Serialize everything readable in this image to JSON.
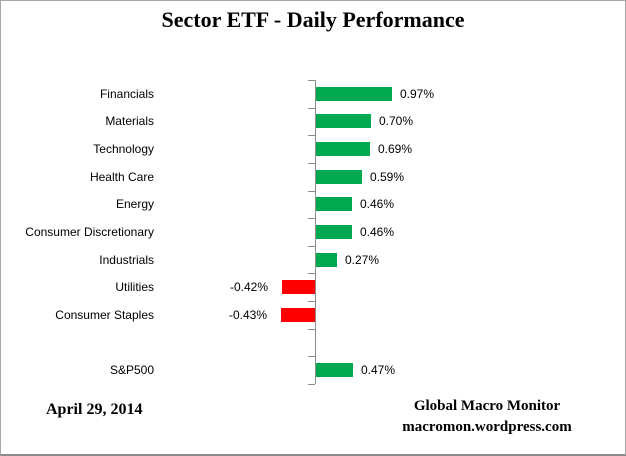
{
  "title": "Sector ETF - Daily Performance",
  "footer": {
    "date": "April 29, 2014",
    "credit_line1": "Global Macro Monitor",
    "credit_line2": "macromon.wordpress.com"
  },
  "colors": {
    "positive_bar": "#00A94F",
    "negative_bar": "#FF0000",
    "axis": "#8C8C8C",
    "text": "#000000"
  },
  "chart_data": {
    "type": "bar",
    "orientation": "horizontal",
    "title": "Sector ETF - Daily Performance",
    "xlabel": "",
    "ylabel": "",
    "xlim": [
      -0.6,
      1.2
    ],
    "grid": false,
    "legend": false,
    "value_unit": "%",
    "categories": [
      "Financials",
      "Materials",
      "Technology",
      "Health Care",
      "Energy",
      "Consumer Discretionary",
      "Industrials",
      "Utilities",
      "Consumer Staples",
      "",
      "S&P500"
    ],
    "values": [
      0.97,
      0.7,
      0.69,
      0.59,
      0.46,
      0.46,
      0.27,
      -0.42,
      -0.43,
      null,
      0.47
    ],
    "value_labels": [
      "0.97%",
      "0.70%",
      "0.69%",
      "0.59%",
      "0.46%",
      "0.46%",
      "0.27%",
      "-0.42%",
      "-0.43%",
      "",
      "0.47%"
    ]
  }
}
